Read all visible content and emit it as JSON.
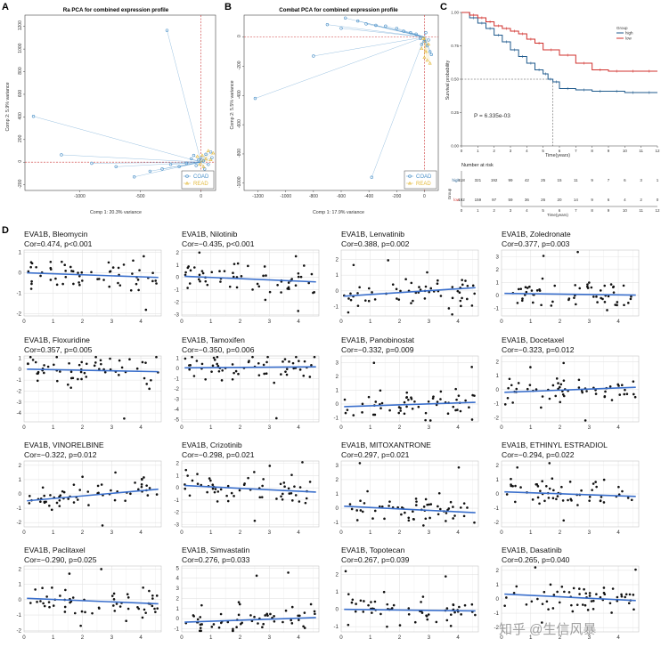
{
  "panels": {
    "A": "A",
    "B": "B",
    "C": "C",
    "D": "D"
  },
  "panelA": {
    "title": "Ra PCA for combined expression profile",
    "xlabel": "Comp 1: 20.3% variance",
    "ylabel": "Comp 2: 5.9% variance",
    "xticks": [
      -1000,
      -500,
      0
    ],
    "yticks": [
      -200,
      0,
      200,
      400,
      600,
      800,
      1000,
      1200
    ],
    "legend": [
      "COAD",
      "READ"
    ]
  },
  "panelB": {
    "title": "Combat PCA for combined expression profile",
    "xlabel": "Comp 1: 17.9% variance",
    "ylabel": "Comp 2: 5.5% variance",
    "xticks": [
      -1200,
      -1000,
      -800,
      -600,
      -400,
      -200,
      0
    ],
    "yticks": [
      -1000,
      -800,
      -600,
      -400,
      -200,
      0
    ],
    "legend": [
      "COAD",
      "READ"
    ]
  },
  "panelC": {
    "ylabel": "Survival probability",
    "xlabel": "Time(years)",
    "yticks": [
      "0.00",
      "0.25",
      "0.50",
      "0.75",
      "1.00"
    ],
    "xticks": [
      "0",
      "1",
      "2",
      "3",
      "4",
      "5",
      "6",
      "7",
      "8",
      "9",
      "10",
      "11",
      "12"
    ],
    "legend_title": "Group",
    "legend": [
      "high",
      "low"
    ],
    "pvalue": "P = 6.335e-03",
    "risk_title": "Number at risk",
    "risk_group_label": "Group",
    "risk_rows": [
      {
        "name": "high",
        "values": [
          "418",
          "321",
          "192",
          "99",
          "42",
          "25",
          "15",
          "11",
          "9",
          "7",
          "6",
          "3",
          "1"
        ]
      },
      {
        "name": "low",
        "values": [
          "192",
          "159",
          "97",
          "59",
          "36",
          "26",
          "20",
          "14",
          "9",
          "6",
          "4",
          "2",
          "0"
        ]
      }
    ],
    "risk_xlabel": "Time(years)"
  },
  "chart_data": [
    {
      "type": "scatter",
      "title": "Ra PCA for combined expression profile",
      "xlabel": "Comp 1: 20.3% variance",
      "ylabel": "Comp 2: 5.9% variance",
      "xlim": [
        -1450,
        120
      ],
      "ylim": [
        -250,
        1300
      ],
      "centroid": [
        0,
        0
      ],
      "series": [
        {
          "name": "COAD",
          "points": [
            [
              -280,
              1165
            ],
            [
              -1380,
              405
            ],
            [
              -1150,
              65
            ],
            [
              -900,
              -10
            ],
            [
              -700,
              -40
            ],
            [
              -550,
              -130
            ],
            [
              -420,
              -80
            ],
            [
              -320,
              -60
            ],
            [
              -250,
              -20
            ],
            [
              -180,
              -40
            ],
            [
              -120,
              -10
            ],
            [
              -80,
              30
            ],
            [
              -60,
              60
            ],
            [
              -40,
              -30
            ],
            [
              -20,
              20
            ],
            [
              0,
              40
            ],
            [
              20,
              10
            ],
            [
              40,
              70
            ],
            [
              60,
              -20
            ],
            [
              80,
              90
            ],
            [
              90,
              40
            ],
            [
              30,
              -60
            ]
          ]
        },
        {
          "name": "READ",
          "points": [
            [
              -30,
              50
            ],
            [
              -10,
              -20
            ],
            [
              10,
              60
            ],
            [
              40,
              30
            ],
            [
              60,
              100
            ],
            [
              80,
              20
            ],
            [
              100,
              80
            ],
            [
              20,
              -40
            ]
          ]
        }
      ]
    },
    {
      "type": "scatter",
      "title": "Combat PCA for combined expression profile",
      "xlabel": "Comp 1: 17.9% variance",
      "ylabel": "Comp 2: 5.5% variance",
      "xlim": [
        -1300,
        100
      ],
      "ylim": [
        -1050,
        150
      ],
      "centroid": [
        0,
        0
      ],
      "series": [
        {
          "name": "COAD",
          "points": [
            [
              -1220,
              -420
            ],
            [
              -800,
              -130
            ],
            [
              -570,
              130
            ],
            [
              -480,
              110
            ],
            [
              -380,
              -960
            ],
            [
              -700,
              85
            ],
            [
              -600,
              60
            ],
            [
              -420,
              90
            ],
            [
              -350,
              80
            ],
            [
              -280,
              75
            ],
            [
              -200,
              60
            ],
            [
              -150,
              40
            ],
            [
              -100,
              30
            ],
            [
              -60,
              20
            ],
            [
              -30,
              -10
            ],
            [
              0,
              -30
            ],
            [
              20,
              -60
            ],
            [
              40,
              -100
            ],
            [
              10,
              30
            ],
            [
              -20,
              -50
            ],
            [
              30,
              -20
            ],
            [
              50,
              -120
            ]
          ]
        },
        {
          "name": "READ",
          "points": [
            [
              -20,
              -80
            ],
            [
              0,
              -140
            ],
            [
              20,
              -160
            ],
            [
              30,
              -50
            ],
            [
              -10,
              -10
            ],
            [
              10,
              -100
            ],
            [
              40,
              -180
            ]
          ]
        }
      ]
    },
    {
      "type": "line",
      "subtype": "kaplan-meier",
      "xlabel": "Time(years)",
      "ylabel": "Survival probability",
      "xlim": [
        0,
        12
      ],
      "ylim": [
        0,
        1
      ],
      "median_marker": {
        "x": 5.6,
        "y": 0.5
      },
      "series": [
        {
          "name": "high",
          "color": "#1f5a8c",
          "x": [
            0,
            0.5,
            1,
            1.5,
            2,
            2.5,
            3,
            3.5,
            4,
            4.5,
            5,
            5.3,
            5.6,
            6,
            7,
            8,
            9,
            10,
            11,
            12
          ],
          "y": [
            1,
            0.96,
            0.92,
            0.88,
            0.83,
            0.78,
            0.72,
            0.67,
            0.62,
            0.57,
            0.54,
            0.5,
            0.48,
            0.43,
            0.42,
            0.41,
            0.41,
            0.4,
            0.4,
            0.4
          ]
        },
        {
          "name": "low",
          "color": "#d0312d",
          "x": [
            0,
            0.5,
            1,
            1.5,
            2,
            2.5,
            3,
            3.5,
            4,
            4.5,
            5,
            6,
            7,
            8,
            9,
            10,
            11,
            12
          ],
          "y": [
            1,
            0.98,
            0.96,
            0.93,
            0.9,
            0.88,
            0.86,
            0.84,
            0.8,
            0.77,
            0.72,
            0.68,
            0.62,
            0.57,
            0.56,
            0.56,
            0.56,
            0.56
          ]
        }
      ]
    },
    {
      "type": "scatter",
      "title": "EVA1B, Bleomycin",
      "subtitle": "Cor=0.474, p<0.001",
      "xlim": [
        0,
        4.7
      ],
      "ylim": [
        -2.1,
        1.1
      ],
      "xticks": [
        0,
        1,
        2,
        3,
        4
      ],
      "yticks": [
        -2,
        -1,
        0,
        1
      ],
      "slope": -0.05,
      "intercept": 0.0
    },
    {
      "type": "scatter",
      "title": "EVA1B, Nilotinib",
      "subtitle": "Cor=−0.435, p<0.001",
      "xlim": [
        0,
        4.7
      ],
      "ylim": [
        -3.1,
        2.2
      ],
      "xticks": [
        0,
        1,
        2,
        3,
        4
      ],
      "yticks": [
        -3,
        -2,
        -1,
        0,
        1,
        2
      ],
      "slope": -0.1,
      "intercept": 0.1
    },
    {
      "type": "scatter",
      "title": "EVA1B, Lenvatinib",
      "subtitle": "Cor=0.388, p=0.002",
      "xlim": [
        0,
        4.7
      ],
      "ylim": [
        -1.6,
        2.6
      ],
      "xticks": [
        0,
        1,
        2,
        3,
        4
      ],
      "yticks": [
        -1,
        0,
        1,
        2
      ],
      "slope": 0.12,
      "intercept": -0.35
    },
    {
      "type": "scatter",
      "title": "EVA1B, Zoledronate",
      "subtitle": "Cor=0.377, p=0.003",
      "xlim": [
        0,
        4.7
      ],
      "ylim": [
        -1.6,
        3.5
      ],
      "xticks": [
        0,
        1,
        2,
        3,
        4
      ],
      "yticks": [
        -1,
        0,
        1,
        2,
        3
      ],
      "slope": -0.03,
      "intercept": 0.15
    },
    {
      "type": "scatter",
      "title": "EVA1B, Floxuridine",
      "subtitle": "Cor=0.357, p=0.005",
      "xlim": [
        0,
        4.7
      ],
      "ylim": [
        -4.8,
        1.2
      ],
      "xticks": [
        0,
        1,
        2,
        3,
        4
      ],
      "yticks": [
        -4,
        -3,
        -2,
        -1,
        0,
        1
      ],
      "slope": -0.05,
      "intercept": 0.0
    },
    {
      "type": "scatter",
      "title": "EVA1B, Tamoxifen",
      "subtitle": "Cor=−0.350, p=0.006",
      "xlim": [
        0,
        4.7
      ],
      "ylim": [
        -5.2,
        1.2
      ],
      "xticks": [
        0,
        1,
        2,
        3,
        4
      ],
      "yticks": [
        -5,
        -4,
        -3,
        -2,
        -1,
        0,
        1
      ],
      "slope": 0.02,
      "intercept": 0.05
    },
    {
      "type": "scatter",
      "title": "EVA1B, Panobinostat",
      "subtitle": "Cor=−0.332, p=0.009",
      "xlim": [
        0,
        4.7
      ],
      "ylim": [
        -1.3,
        3.5
      ],
      "xticks": [
        0,
        1,
        2,
        3,
        4
      ],
      "yticks": [
        -1,
        0,
        1,
        2,
        3
      ],
      "slope": 0.07,
      "intercept": -0.2
    },
    {
      "type": "scatter",
      "title": "EVA1B, Docetaxel",
      "subtitle": "Cor=−0.323, p=0.012",
      "xlim": [
        0,
        4.7
      ],
      "ylim": [
        -2.3,
        2.4
      ],
      "xticks": [
        0,
        1,
        2,
        3,
        4
      ],
      "yticks": [
        -2,
        -1,
        0,
        1,
        2
      ],
      "slope": 0.08,
      "intercept": -0.2
    },
    {
      "type": "scatter",
      "title": "EVA1B, VINORELBINE",
      "subtitle": "Cor=−0.322, p=0.012",
      "xlim": [
        0,
        4.7
      ],
      "ylim": [
        -2.3,
        2.3
      ],
      "xticks": [
        0,
        1,
        2,
        3,
        4
      ],
      "yticks": [
        -2,
        -1,
        0,
        1,
        2
      ],
      "slope": 0.18,
      "intercept": -0.5
    },
    {
      "type": "scatter",
      "title": "EVA1B, Crizotinib",
      "subtitle": "Cor=−0.298, p=0.021",
      "xlim": [
        0,
        4.7
      ],
      "ylim": [
        -3.2,
        2.2
      ],
      "xticks": [
        0,
        1,
        2,
        3,
        4
      ],
      "yticks": [
        -3,
        -2,
        -1,
        0,
        1,
        2
      ],
      "slope": -0.12,
      "intercept": 0.2
    },
    {
      "type": "scatter",
      "title": "EVA1B, MITOXANTRONE",
      "subtitle": "Cor=0.297, p=0.021",
      "xlim": [
        0,
        4.7
      ],
      "ylim": [
        -1.3,
        3.3
      ],
      "xticks": [
        0,
        1,
        2,
        3,
        4
      ],
      "yticks": [
        -1,
        0,
        1,
        2,
        3
      ],
      "slope": -0.1,
      "intercept": 0.15
    },
    {
      "type": "scatter",
      "title": "EVA1B, ETHINYL ESTRADIOL",
      "subtitle": "Cor=−0.294, p=0.022",
      "xlim": [
        0,
        4.7
      ],
      "ylim": [
        -2.3,
        2.3
      ],
      "xticks": [
        0,
        1,
        2,
        3,
        4
      ],
      "yticks": [
        -2,
        -1,
        0,
        1,
        2
      ],
      "slope": -0.07,
      "intercept": 0.15
    },
    {
      "type": "scatter",
      "title": "EVA1B, Paclitaxel",
      "subtitle": "Cor=−0.290, p=0.025",
      "xlim": [
        0,
        4.7
      ],
      "ylim": [
        -2.1,
        2.2
      ],
      "xticks": [
        0,
        1,
        2,
        3,
        4
      ],
      "yticks": [
        -2,
        -1,
        0,
        1,
        2
      ],
      "slope": -0.08,
      "intercept": 0.1
    },
    {
      "type": "scatter",
      "title": "EVA1B, Simvastatin",
      "subtitle": "Cor=0.276, p=0.033",
      "xlim": [
        0,
        4.7
      ],
      "ylim": [
        -1.3,
        5.2
      ],
      "xticks": [
        0,
        1,
        2,
        3,
        4
      ],
      "yticks": [
        -1,
        0,
        1,
        2,
        3,
        4,
        5
      ],
      "slope": 0.1,
      "intercept": -0.35
    },
    {
      "type": "scatter",
      "title": "EVA1B, Topotecan",
      "subtitle": "Cor=0.267, p=0.039",
      "xlim": [
        0,
        4.7
      ],
      "ylim": [
        -1.3,
        2.5
      ],
      "xticks": [
        0,
        1,
        2,
        3,
        4
      ],
      "yticks": [
        -1,
        0,
        1,
        2
      ],
      "slope": -0.02,
      "intercept": 0.0
    },
    {
      "type": "scatter",
      "title": "EVA1B, Dasatinib",
      "subtitle": "Cor=0.265, p=0.040",
      "xlim": [
        0,
        4.7
      ],
      "ylim": [
        -2.3,
        2.3
      ],
      "xticks": [
        0,
        1,
        2,
        3,
        4
      ],
      "yticks": [
        -2,
        -1,
        0,
        1,
        2
      ],
      "slope": -0.1,
      "intercept": 0.35
    }
  ],
  "colors": {
    "coad": "#4a90c8",
    "read": "#e2b93b",
    "high": "#1f5a8c",
    "low": "#d0312d",
    "fit": "#3a6fcc",
    "grid": "#e4e4e4"
  },
  "watermark": "知乎 @生信风暴"
}
